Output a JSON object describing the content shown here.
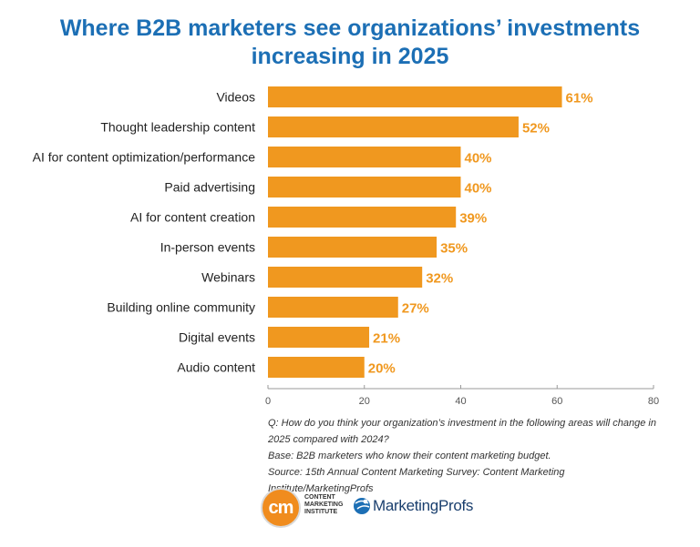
{
  "chart_data": {
    "type": "bar",
    "orientation": "horizontal",
    "title": "Where B2B marketers see organizations’ investments increasing in 2025",
    "title_lines": [
      "Where B2B marketers see organizations’ investments",
      "increasing in 2025"
    ],
    "categories": [
      "Videos",
      "Thought leadership content",
      "AI for content optimization/performance",
      "Paid advertising",
      "AI for content creation",
      "In-person events",
      "Webinars",
      "Building online community",
      "Digital events",
      "Audio content"
    ],
    "values": [
      61,
      52,
      40,
      40,
      39,
      35,
      32,
      27,
      21,
      20
    ],
    "value_labels": [
      "61%",
      "52%",
      "40%",
      "40%",
      "39%",
      "35%",
      "32%",
      "27%",
      "21%",
      "20%"
    ],
    "xlim": [
      0,
      80
    ],
    "xticks": [
      0,
      20,
      40,
      60,
      80
    ],
    "xtick_labels": [
      "0",
      "20",
      "40",
      "60",
      "80"
    ],
    "xlabel": "",
    "ylabel": "",
    "grid": false,
    "legend": "none",
    "bar_color": "#f0981f",
    "label_color": "#f0981f",
    "title_color": "#1c6fb5"
  },
  "notes": {
    "question_line1": "Q: How do you think your organization’s investment in the following areas will change in",
    "question_line2": "2025 compared with 2024?",
    "base": "Base: B2B marketers who know their content marketing budget.",
    "source": "Source: 15th Annual Content Marketing Survey: Content Marketing Institute/MarketingProfs"
  },
  "logos": {
    "cmi_mark": "cm",
    "cmi_line1": "CONTENT",
    "cmi_line2": "MARKETING",
    "cmi_line3": "INSTITUTE",
    "mp_name": "MarketingProfs",
    "mp_icon": "marketingprofs-globe-icon"
  }
}
